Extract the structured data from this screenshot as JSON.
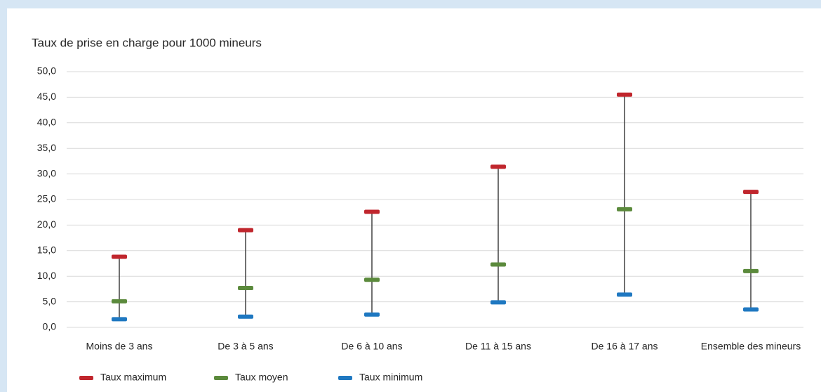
{
  "chart_data": {
    "type": "range",
    "title": "Taux de prise en charge pour 1000 mineurs",
    "categories": [
      "Moins de 3 ans",
      "De 3 à 5 ans",
      "De 6 à 10 ans",
      "De 11 à 15 ans",
      "De 16 à 17 ans",
      "Ensemble des mineurs"
    ],
    "series": [
      {
        "name": "Taux maximum",
        "color": "#c0262d",
        "values": [
          13.8,
          19.0,
          22.6,
          31.4,
          45.5,
          26.5
        ]
      },
      {
        "name": "Taux moyen",
        "color": "#5b8a3c",
        "values": [
          5.1,
          7.7,
          9.3,
          12.3,
          23.1,
          11.0
        ]
      },
      {
        "name": "Taux minimum",
        "color": "#1f78c1",
        "values": [
          1.6,
          2.1,
          2.5,
          4.9,
          6.4,
          3.5
        ]
      }
    ],
    "ylim": [
      0,
      50
    ],
    "yticks": [
      {
        "value": 0,
        "label": "0,0"
      },
      {
        "value": 5,
        "label": "5,0"
      },
      {
        "value": 10,
        "label": "10,0"
      },
      {
        "value": 15,
        "label": "15,0"
      },
      {
        "value": 20,
        "label": "20,0"
      },
      {
        "value": 25,
        "label": "25,0"
      },
      {
        "value": 30,
        "label": "30,0"
      },
      {
        "value": 35,
        "label": "35,0"
      },
      {
        "value": 40,
        "label": "40,0"
      },
      {
        "value": 45,
        "label": "45,0"
      },
      {
        "value": 50,
        "label": "50,0"
      }
    ],
    "grid": true,
    "legend": "bottom"
  }
}
